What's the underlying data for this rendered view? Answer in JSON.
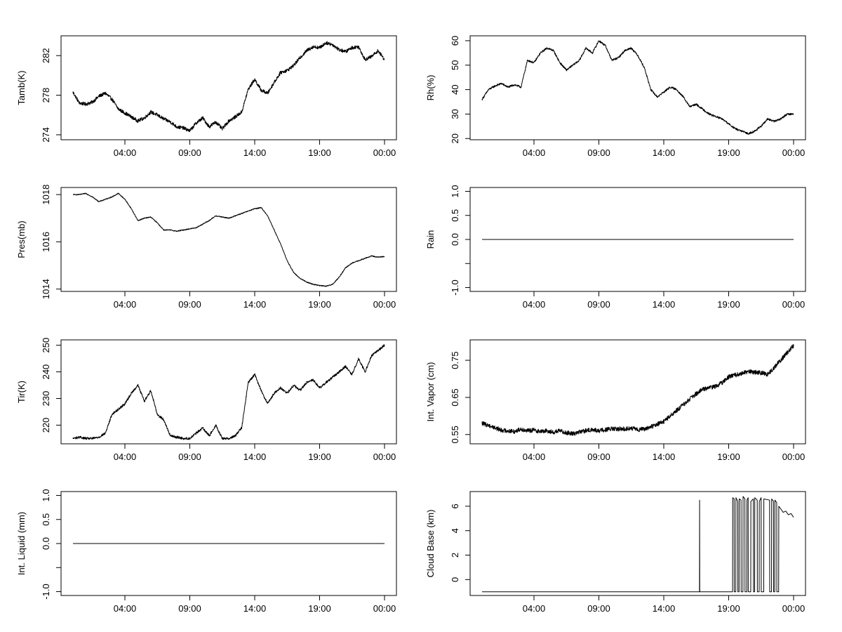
{
  "chart_data": [
    {
      "type": "line",
      "ylabel": "Tamb(K)",
      "xlim": [
        0,
        24
      ],
      "ylim": [
        273.5,
        284
      ],
      "x_ticks": [
        {
          "v": 4,
          "label": "04:00"
        },
        {
          "v": 9,
          "label": "09:00"
        },
        {
          "v": 14,
          "label": "14:00"
        },
        {
          "v": 19,
          "label": "19:00"
        },
        {
          "v": 24,
          "label": "00:00"
        }
      ],
      "y_ticks": [
        {
          "v": 274,
          "label": "274"
        },
        {
          "v": 278,
          "label": "278"
        },
        {
          "v": 282,
          "label": "282"
        }
      ],
      "noise": 0.35,
      "series": [
        {
          "x": [
            0,
            0.5,
            1,
            1.5,
            2,
            2.5,
            3,
            3.5,
            4,
            4.5,
            5,
            5.5,
            6,
            6.5,
            7,
            7.5,
            8,
            8.5,
            9,
            9.5,
            10,
            10.5,
            11,
            11.5,
            12,
            12.5,
            13,
            13.5,
            14,
            14.5,
            15,
            15.5,
            16,
            16.5,
            17,
            17.5,
            18,
            18.5,
            19,
            19.5,
            20,
            20.5,
            21,
            21.5,
            22,
            22.5,
            23,
            23.5,
            24
          ],
          "y": [
            278.3,
            277.2,
            277.1,
            277.3,
            277.9,
            278.2,
            277.6,
            276.6,
            276.2,
            275.8,
            275.4,
            275.7,
            276.3,
            276.0,
            275.6,
            275.3,
            274.8,
            274.7,
            274.4,
            275.2,
            275.7,
            274.8,
            275.3,
            274.6,
            275.4,
            275.8,
            276.3,
            278.6,
            279.6,
            278.5,
            278.2,
            279.3,
            280.3,
            280.5,
            281.0,
            281.8,
            282.5,
            282.9,
            282.8,
            283.3,
            283.1,
            282.6,
            282.4,
            282.8,
            282.9,
            281.6,
            281.9,
            282.5,
            281.6
          ]
        }
      ]
    },
    {
      "type": "line",
      "ylabel": "Rh(%)",
      "xlim": [
        0,
        24
      ],
      "ylim": [
        19.5,
        62
      ],
      "x_ticks": [
        {
          "v": 4,
          "label": "04:00"
        },
        {
          "v": 9,
          "label": "09:00"
        },
        {
          "v": 14,
          "label": "14:00"
        },
        {
          "v": 19,
          "label": "19:00"
        },
        {
          "v": 24,
          "label": "00:00"
        }
      ],
      "y_ticks": [
        {
          "v": 20,
          "label": "20"
        },
        {
          "v": 30,
          "label": "30"
        },
        {
          "v": 40,
          "label": "40"
        },
        {
          "v": 50,
          "label": "50"
        },
        {
          "v": 60,
          "label": "60"
        }
      ],
      "noise": 0.8,
      "series": [
        {
          "x": [
            0,
            0.5,
            1,
            1.5,
            2,
            2.5,
            3,
            3.5,
            4,
            4.5,
            5,
            5.5,
            6,
            6.5,
            7,
            7.5,
            8,
            8.5,
            9,
            9.5,
            10,
            10.5,
            11,
            11.5,
            12,
            12.5,
            13,
            13.5,
            14,
            14.5,
            15,
            15.5,
            16,
            16.5,
            17,
            17.5,
            18,
            18.5,
            19,
            19.5,
            20,
            20.5,
            21,
            21.5,
            22,
            22.5,
            23,
            23.5,
            24
          ],
          "y": [
            36,
            40,
            41.5,
            42.5,
            41,
            42,
            41,
            52,
            51,
            55,
            57,
            56,
            51,
            48,
            50,
            52,
            57,
            55,
            60,
            58,
            52,
            53,
            56,
            57,
            54,
            49,
            40,
            37,
            39,
            41,
            40,
            37,
            33,
            34,
            32,
            30,
            29,
            28,
            26,
            24,
            23,
            22,
            23,
            25,
            28,
            27,
            28,
            30,
            30
          ]
        }
      ]
    },
    {
      "type": "line",
      "ylabel": "Pres(mb)",
      "xlim": [
        0,
        24
      ],
      "ylim": [
        1013.9,
        1018.3
      ],
      "x_ticks": [
        {
          "v": 4,
          "label": "04:00"
        },
        {
          "v": 9,
          "label": "09:00"
        },
        {
          "v": 14,
          "label": "14:00"
        },
        {
          "v": 19,
          "label": "19:00"
        },
        {
          "v": 24,
          "label": "00:00"
        }
      ],
      "y_ticks": [
        {
          "v": 1014,
          "label": "1014"
        },
        {
          "v": 1016,
          "label": "1016"
        },
        {
          "v": 1018,
          "label": "1018"
        }
      ],
      "noise": 0.04,
      "series": [
        {
          "x": [
            0,
            0.5,
            1,
            1.5,
            2,
            2.5,
            3,
            3.5,
            4,
            4.5,
            5,
            5.5,
            6,
            6.5,
            7,
            7.5,
            8,
            8.5,
            9,
            9.5,
            10,
            10.5,
            11,
            11.5,
            12,
            12.5,
            13,
            13.5,
            14,
            14.5,
            15,
            15.5,
            16,
            16.5,
            17,
            17.5,
            18,
            18.5,
            19,
            19.5,
            20,
            20.5,
            21,
            21.5,
            22,
            22.5,
            23,
            23.5,
            24
          ],
          "y": [
            1018.0,
            1018.0,
            1018.05,
            1017.9,
            1017.7,
            1017.8,
            1017.9,
            1018.05,
            1017.8,
            1017.4,
            1016.9,
            1017.0,
            1017.05,
            1016.8,
            1016.5,
            1016.5,
            1016.45,
            1016.5,
            1016.55,
            1016.6,
            1016.75,
            1016.9,
            1017.1,
            1017.05,
            1017.0,
            1017.1,
            1017.2,
            1017.3,
            1017.4,
            1017.45,
            1017.1,
            1016.5,
            1015.9,
            1015.2,
            1014.7,
            1014.45,
            1014.3,
            1014.2,
            1014.15,
            1014.12,
            1014.2,
            1014.5,
            1014.9,
            1015.1,
            1015.2,
            1015.3,
            1015.4,
            1015.35,
            1015.38
          ]
        }
      ]
    },
    {
      "type": "line",
      "ylabel": "Rain",
      "xlim": [
        0,
        24
      ],
      "ylim": [
        -1.08,
        1.08
      ],
      "x_ticks": [
        {
          "v": 4,
          "label": "04:00"
        },
        {
          "v": 9,
          "label": "09:00"
        },
        {
          "v": 14,
          "label": "14:00"
        },
        {
          "v": 19,
          "label": "19:00"
        },
        {
          "v": 24,
          "label": "00:00"
        }
      ],
      "y_ticks": [
        {
          "v": -1.0,
          "label": "-1.0"
        },
        {
          "v": -0.5,
          "label": ""
        },
        {
          "v": 0.0,
          "label": "0.0"
        },
        {
          "v": 0.5,
          "label": "0.5"
        },
        {
          "v": 1.0,
          "label": "1.0"
        }
      ],
      "noise": 0,
      "series": [
        {
          "x": [
            0,
            24
          ],
          "y": [
            0,
            0
          ]
        }
      ]
    },
    {
      "type": "line",
      "ylabel": "Tir(K)",
      "xlim": [
        0,
        24
      ],
      "ylim": [
        213,
        252
      ],
      "x_ticks": [
        {
          "v": 4,
          "label": "04:00"
        },
        {
          "v": 9,
          "label": "09:00"
        },
        {
          "v": 14,
          "label": "14:00"
        },
        {
          "v": 19,
          "label": "19:00"
        },
        {
          "v": 24,
          "label": "00:00"
        }
      ],
      "y_ticks": [
        {
          "v": 220,
          "label": "220"
        },
        {
          "v": 230,
          "label": "230"
        },
        {
          "v": 240,
          "label": "240"
        },
        {
          "v": 250,
          "label": "250"
        }
      ],
      "noise": 0.9,
      "series": [
        {
          "x": [
            0,
            0.5,
            1,
            1.5,
            2,
            2.5,
            3,
            3.5,
            4,
            4.5,
            5,
            5.5,
            6,
            6.5,
            7,
            7.5,
            8,
            8.5,
            9,
            9.5,
            10,
            10.5,
            11,
            11.5,
            12,
            12.5,
            13,
            13.5,
            14,
            14.5,
            15,
            15.5,
            16,
            16.5,
            17,
            17.5,
            18,
            18.5,
            19,
            19.5,
            20,
            20.5,
            21,
            21.5,
            22,
            22.5,
            23,
            23.5,
            24
          ],
          "y": [
            215,
            215.5,
            215,
            215,
            215.5,
            217,
            224,
            226,
            228,
            232,
            235,
            229,
            233,
            224,
            222,
            216,
            215.5,
            215,
            215,
            217,
            219,
            216,
            220,
            215,
            215,
            216,
            219,
            236,
            239,
            233,
            228,
            232,
            234,
            232,
            235,
            233,
            236,
            237,
            234,
            236,
            238,
            240,
            242,
            239,
            245,
            240,
            246,
            248,
            250
          ]
        }
      ]
    },
    {
      "type": "line",
      "ylabel": "Int. Vapor (cm)",
      "xlim": [
        0,
        24
      ],
      "ylim": [
        0.525,
        0.805
      ],
      "x_ticks": [
        {
          "v": 4,
          "label": "04:00"
        },
        {
          "v": 9,
          "label": "09:00"
        },
        {
          "v": 14,
          "label": "14:00"
        },
        {
          "v": 19,
          "label": "19:00"
        },
        {
          "v": 24,
          "label": "00:00"
        }
      ],
      "y_ticks": [
        {
          "v": 0.55,
          "label": "0.55"
        },
        {
          "v": 0.65,
          "label": "0.65"
        },
        {
          "v": 0.75,
          "label": "0.75"
        }
      ],
      "noise": 0.012,
      "series": [
        {
          "x": [
            0,
            0.5,
            1,
            1.5,
            2,
            2.5,
            3,
            3.5,
            4,
            4.5,
            5,
            5.5,
            6,
            6.5,
            7,
            7.5,
            8,
            8.5,
            9,
            9.5,
            10,
            10.5,
            11,
            11.5,
            12,
            12.5,
            13,
            13.5,
            14,
            14.5,
            15,
            15.5,
            16,
            16.5,
            17,
            17.5,
            18,
            18.5,
            19,
            19.5,
            20,
            20.5,
            21,
            21.5,
            22,
            22.5,
            23,
            23.5,
            24
          ],
          "y": [
            0.58,
            0.575,
            0.568,
            0.562,
            0.56,
            0.558,
            0.565,
            0.56,
            0.562,
            0.558,
            0.56,
            0.556,
            0.56,
            0.555,
            0.552,
            0.557,
            0.56,
            0.563,
            0.56,
            0.563,
            0.565,
            0.565,
            0.565,
            0.567,
            0.563,
            0.565,
            0.57,
            0.578,
            0.585,
            0.6,
            0.615,
            0.63,
            0.645,
            0.66,
            0.672,
            0.675,
            0.68,
            0.69,
            0.705,
            0.71,
            0.715,
            0.72,
            0.718,
            0.716,
            0.712,
            0.73,
            0.75,
            0.77,
            0.79
          ]
        }
      ]
    },
    {
      "type": "line",
      "ylabel": "Int. Liquid (mm)",
      "xlim": [
        0,
        24
      ],
      "ylim": [
        -1.08,
        1.08
      ],
      "x_ticks": [
        {
          "v": 4,
          "label": "04:00"
        },
        {
          "v": 9,
          "label": "09:00"
        },
        {
          "v": 14,
          "label": "14:00"
        },
        {
          "v": 19,
          "label": "19:00"
        },
        {
          "v": 24,
          "label": "00:00"
        }
      ],
      "y_ticks": [
        {
          "v": -1.0,
          "label": "-1.0"
        },
        {
          "v": -0.5,
          "label": ""
        },
        {
          "v": 0.0,
          "label": "0.0"
        },
        {
          "v": 0.5,
          "label": "0.5"
        },
        {
          "v": 1.0,
          "label": "1.0"
        }
      ],
      "noise": 0,
      "series": [
        {
          "x": [
            0,
            24
          ],
          "y": [
            0,
            0
          ]
        }
      ]
    },
    {
      "type": "line",
      "ylabel": "Cloud Base (km)",
      "xlim": [
        0,
        24
      ],
      "ylim": [
        -1.3,
        7.2
      ],
      "x_ticks": [
        {
          "v": 4,
          "label": "04:00"
        },
        {
          "v": 9,
          "label": "09:00"
        },
        {
          "v": 14,
          "label": "14:00"
        },
        {
          "v": 19,
          "label": "19:00"
        },
        {
          "v": 24,
          "label": "00:00"
        }
      ],
      "y_ticks": [
        {
          "v": 0,
          "label": "0"
        },
        {
          "v": 2,
          "label": "2"
        },
        {
          "v": 4,
          "label": "4"
        },
        {
          "v": 6,
          "label": "6"
        }
      ],
      "noise": 0,
      "series": [
        {
          "x": [
            0,
            16.75,
            16.76,
            16.77,
            19.3,
            19.31,
            19.42,
            19.43,
            19.55,
            19.56,
            19.7,
            19.71,
            19.8,
            19.81,
            19.95,
            19.96,
            20.1,
            20.11,
            20.25,
            20.26,
            20.4,
            20.41,
            20.5,
            20.51,
            20.7,
            20.71,
            20.9,
            20.91,
            21.0,
            21.01,
            21.2,
            21.21,
            21.35,
            21.36,
            21.5,
            21.51,
            21.7,
            21.71,
            22.15,
            22.16,
            22.3,
            22.31,
            22.45,
            22.46,
            22.55,
            22.56,
            22.7,
            22.71,
            22.85,
            22.86,
            23.0,
            23.2,
            23.4,
            23.6,
            23.8,
            24
          ],
          "y": [
            -1,
            -1,
            6.5,
            -1,
            -1,
            6.7,
            6.6,
            -1,
            -1,
            6.7,
            6.4,
            -1,
            -1,
            6.6,
            6.5,
            -1,
            -1,
            6.8,
            6.6,
            -1,
            -1,
            6.5,
            6.7,
            -1,
            -1,
            6.4,
            6.6,
            -1,
            -1,
            6.7,
            6.5,
            -1,
            -1,
            6.4,
            6.7,
            -1,
            -1,
            6.6,
            6.5,
            -1,
            -1,
            6.6,
            6.4,
            -1,
            -1,
            6.5,
            6.3,
            -1,
            -1,
            6.0,
            5.8,
            5.5,
            5.6,
            5.3,
            5.4,
            5.1
          ]
        }
      ]
    }
  ]
}
